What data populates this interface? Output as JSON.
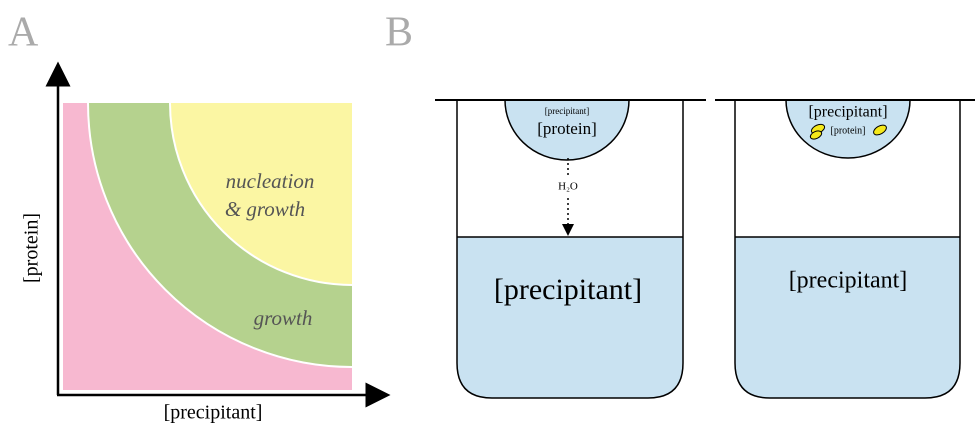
{
  "panel_a": {
    "label": "A",
    "y_axis_label": "[protein]",
    "x_axis_label": "[precipitant]",
    "regions": {
      "nucleation_line1": "nucleation",
      "nucleation_line2": "& growth",
      "growth": "growth"
    }
  },
  "panel_b": {
    "label": "B",
    "well_1": {
      "drop_precipitant": "[precipitant]",
      "drop_protein": "[protein]",
      "vapor": "H₂O",
      "reservoir": "[precipitant]"
    },
    "well_2": {
      "drop_precipitant": "[precipitant]",
      "drop_protein": "[protein]",
      "reservoir": "[precipitant]"
    }
  }
}
